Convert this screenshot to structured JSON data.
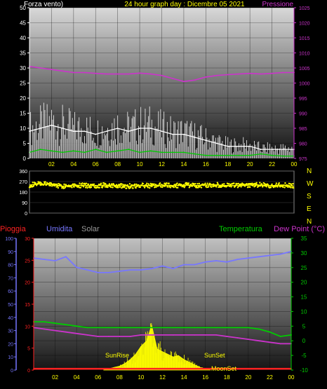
{
  "header": {
    "left_label": "Forza vento)",
    "title": "24 hour graph day : Dicembre 05 2021",
    "right_label": "Pressione"
  },
  "chart_data": [
    {
      "type": "line",
      "name": "wind-pressure",
      "left_axis": {
        "ticks": [
          0,
          5,
          10,
          15,
          20,
          25,
          30,
          35,
          40,
          45,
          50
        ],
        "ylim": [
          0,
          50
        ]
      },
      "right_axis": {
        "ticks": [
          975,
          980,
          985,
          990,
          995,
          1000,
          1005,
          1010,
          1015,
          1020,
          1025
        ],
        "ylim": [
          975,
          1025
        ]
      },
      "x_ticks": [
        "02",
        "04",
        "06",
        "08",
        "10",
        "12",
        "14",
        "16",
        "18",
        "20",
        "22",
        "00"
      ],
      "xlim": [
        0,
        24
      ],
      "series": [
        {
          "axis": "right",
          "color": "#cc33cc",
          "x": [
            0,
            1,
            2,
            3,
            4,
            5,
            6,
            7,
            8,
            9,
            10,
            11,
            12,
            13,
            14,
            15,
            16,
            17,
            18,
            19,
            20,
            21,
            22,
            23,
            24
          ],
          "y": [
            1005.5,
            1005,
            1004.5,
            1004,
            1003.5,
            1003.5,
            1003.2,
            1003,
            1003,
            1003,
            1003.3,
            1003,
            1002.5,
            1001.5,
            1000.5,
            1001,
            1002,
            1002.5,
            1002.8,
            1003,
            1003.2,
            1003,
            1003.2,
            1003.5,
            1003.5
          ]
        },
        {
          "axis": "left",
          "color": "#ffffff",
          "x": [
            0,
            1,
            2,
            3,
            4,
            5,
            6,
            7,
            8,
            9,
            10,
            11,
            12,
            13,
            14,
            15,
            16,
            17,
            18,
            19,
            20,
            21,
            22,
            23,
            24
          ],
          "y": [
            9,
            10,
            11,
            10,
            9,
            9,
            8,
            9,
            10,
            9,
            10,
            10,
            9,
            8,
            8,
            7,
            6,
            5,
            4,
            4,
            4,
            3,
            3,
            3,
            3
          ]
        },
        {
          "axis": "left",
          "color": "#00cc00",
          "x": [
            0,
            1,
            2,
            3,
            4,
            5,
            6,
            7,
            8,
            9,
            10,
            11,
            12,
            13,
            14,
            15,
            16,
            17,
            18,
            19,
            20,
            21,
            22,
            23,
            24
          ],
          "y": [
            2,
            3,
            2.5,
            2,
            2.5,
            2,
            3,
            2,
            2.5,
            3,
            2,
            2.5,
            2,
            2,
            2,
            1.5,
            1,
            1,
            1,
            1,
            1,
            1.5,
            1,
            0.8,
            0.8
          ]
        }
      ]
    },
    {
      "type": "scatter",
      "name": "wind-direction",
      "left_axis": {
        "ticks": [
          0,
          90,
          180,
          270,
          360
        ],
        "ylim": [
          0,
          360
        ]
      },
      "right_labels": [
        "N",
        "W",
        "S",
        "E",
        "N"
      ],
      "series": [
        {
          "color": "#ffff00",
          "x": [
            0,
            1,
            2,
            3,
            4,
            5,
            6,
            7,
            8,
            9,
            10,
            11,
            12,
            13,
            14,
            15,
            16,
            17,
            18,
            19,
            20,
            21,
            22,
            23,
            24
          ],
          "y": [
            240,
            250,
            245,
            230,
            240,
            235,
            235,
            240,
            235,
            230,
            235,
            235,
            240,
            235,
            240,
            235,
            240,
            240,
            235,
            235,
            240,
            240,
            235,
            240,
            230
          ]
        }
      ]
    },
    {
      "type": "line",
      "name": "rain-hum-temp",
      "header_labels": {
        "rain": "Pioggia",
        "humidity": "Umidita",
        "solar": "Solar",
        "temperature": "Temperatura",
        "dew_point": "Dew Point (°C)"
      },
      "axis_hum": {
        "ticks": [
          0,
          10,
          20,
          30,
          40,
          50,
          60,
          70,
          80,
          90,
          100
        ],
        "ylim": [
          0,
          100
        ]
      },
      "axis_rain": {
        "ticks": [
          0,
          5,
          10,
          15,
          20,
          25,
          30
        ],
        "ylim": [
          0,
          30
        ]
      },
      "axis_temp": {
        "ticks": [
          -10,
          -5,
          0,
          5,
          10,
          15,
          20,
          25,
          30,
          35
        ],
        "ylim": [
          -10,
          35
        ]
      },
      "x_ticks": [
        "02",
        "04",
        "06",
        "08",
        "10",
        "12",
        "14",
        "16",
        "18",
        "20",
        "22",
        "00"
      ],
      "xlim": [
        0,
        24
      ],
      "annotations": {
        "sunrise": "SunRise",
        "sunset": "SunSet",
        "moonset": "MoonSet"
      },
      "series": [
        {
          "axis": "hum",
          "color": "#7777ff",
          "x": [
            0,
            1,
            2,
            3,
            4,
            5,
            6,
            7,
            8,
            9,
            10,
            11,
            12,
            13,
            14,
            15,
            16,
            17,
            18,
            19,
            20,
            21,
            22,
            23,
            24
          ],
          "y": [
            85,
            84,
            83,
            86,
            78,
            76,
            74,
            74,
            75,
            76,
            76,
            77,
            79,
            77,
            80,
            80,
            82,
            83,
            82,
            84,
            85,
            86,
            87,
            88,
            90
          ]
        },
        {
          "axis": "temp",
          "color": "#00cc00",
          "x": [
            0,
            1,
            2,
            3,
            4,
            5,
            6,
            7,
            8,
            9,
            10,
            11,
            12,
            13,
            14,
            15,
            16,
            17,
            18,
            19,
            20,
            21,
            22,
            23,
            24
          ],
          "y": [
            6.5,
            6.5,
            6,
            5.5,
            5,
            4.5,
            4.5,
            4.5,
            4.5,
            4.5,
            4.5,
            4.5,
            4.5,
            4.5,
            4.5,
            4.5,
            4.5,
            4.5,
            4.5,
            4.5,
            4.5,
            4,
            3,
            1.5,
            2
          ]
        },
        {
          "axis": "temp",
          "color": "#cc33cc",
          "x": [
            0,
            1,
            2,
            3,
            4,
            5,
            6,
            7,
            8,
            9,
            10,
            11,
            12,
            13,
            14,
            15,
            16,
            17,
            18,
            19,
            20,
            21,
            22,
            23,
            24
          ],
          "y": [
            4.5,
            4,
            3.5,
            3,
            2.5,
            2,
            1.5,
            1.5,
            1.5,
            1.5,
            2,
            2,
            2,
            2,
            2,
            2,
            2,
            2,
            1.5,
            1,
            0.5,
            0,
            -0.5,
            -1,
            -1
          ]
        },
        {
          "axis": "rain",
          "color": "#ff2222",
          "x": [
            0,
            24
          ],
          "y": [
            0.3,
            0.3
          ]
        }
      ],
      "solar": {
        "color": "#ffff00",
        "x": [
          6.5,
          7,
          7.5,
          8,
          8.5,
          9,
          9.5,
          10,
          10.5,
          11,
          11.5,
          12,
          12.5,
          13,
          13.5,
          14,
          14.5,
          15,
          15.5,
          16,
          16.5
        ],
        "y": [
          0,
          1,
          2,
          3,
          5,
          8,
          12,
          18,
          22,
          34,
          16,
          14,
          12,
          10,
          11,
          8,
          6,
          4,
          2,
          1,
          0
        ]
      }
    }
  ]
}
